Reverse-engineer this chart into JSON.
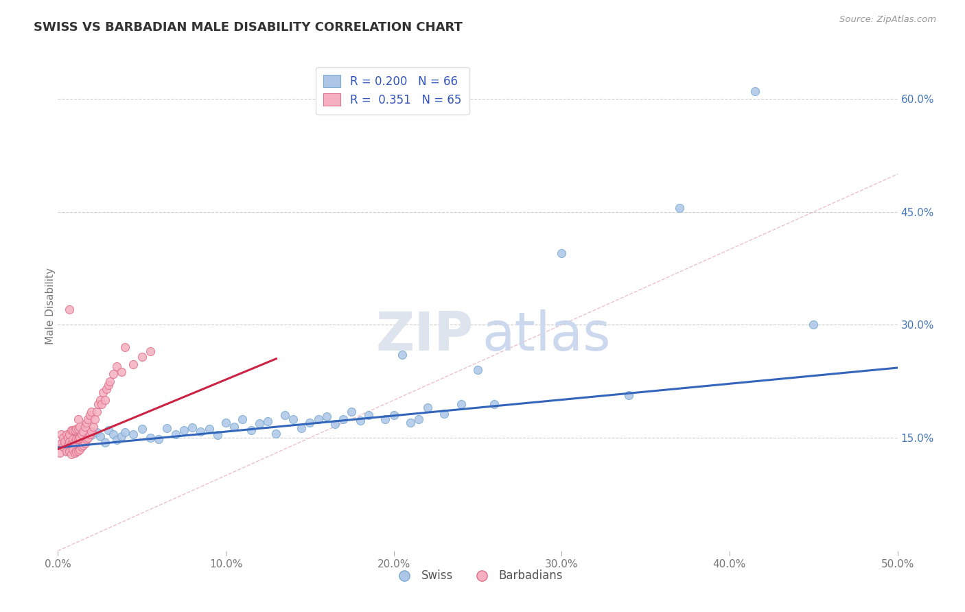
{
  "title": "SWISS VS BARBADIAN MALE DISABILITY CORRELATION CHART",
  "source_text": "Source: ZipAtlas.com",
  "ylabel": "Male Disability",
  "xlim": [
    0.0,
    0.5
  ],
  "ylim": [
    0.0,
    0.65
  ],
  "xticks": [
    0.0,
    0.1,
    0.2,
    0.3,
    0.4,
    0.5
  ],
  "xtick_labels": [
    "0.0%",
    "10.0%",
    "20.0%",
    "30.0%",
    "40.0%",
    "50.0%"
  ],
  "yticks": [
    0.15,
    0.3,
    0.45,
    0.6
  ],
  "ytick_labels": [
    "15.0%",
    "30.0%",
    "45.0%",
    "60.0%"
  ],
  "swiss_color": "#adc6e8",
  "barbadian_color": "#f5afc0",
  "swiss_edge_color": "#7aaad0",
  "barbadian_edge_color": "#e0708a",
  "swiss_trend_color": "#3366bb",
  "barbadian_trend_color": "#cc2244",
  "diag_color": "#e8b0c0",
  "legend_swiss_R": "0.200",
  "legend_swiss_N": "66",
  "legend_barbadian_R": "0.351",
  "legend_barbadian_N": "65",
  "swiss_label": "Swiss",
  "barbadian_label": "Barbadians",
  "title_color": "#333333",
  "axis_color": "#777777",
  "grid_color": "#cccccc",
  "background_color": "#ffffff",
  "swiss_x": [
    0.002,
    0.003,
    0.004,
    0.005,
    0.006,
    0.007,
    0.008,
    0.009,
    0.01,
    0.011,
    0.013,
    0.015,
    0.017,
    0.02,
    0.023,
    0.025,
    0.028,
    0.03,
    0.033,
    0.035,
    0.038,
    0.04,
    0.045,
    0.05,
    0.055,
    0.06,
    0.065,
    0.07,
    0.075,
    0.08,
    0.085,
    0.09,
    0.095,
    0.1,
    0.105,
    0.11,
    0.115,
    0.12,
    0.125,
    0.13,
    0.135,
    0.14,
    0.145,
    0.15,
    0.155,
    0.16,
    0.165,
    0.17,
    0.175,
    0.18,
    0.185,
    0.195,
    0.2,
    0.205,
    0.21,
    0.215,
    0.22,
    0.23,
    0.24,
    0.25,
    0.26,
    0.3,
    0.34,
    0.37,
    0.415,
    0.45
  ],
  "swiss_y": [
    0.142,
    0.138,
    0.145,
    0.132,
    0.15,
    0.143,
    0.136,
    0.148,
    0.13,
    0.155,
    0.145,
    0.15,
    0.148,
    0.154,
    0.157,
    0.152,
    0.144,
    0.16,
    0.155,
    0.147,
    0.152,
    0.157,
    0.155,
    0.162,
    0.15,
    0.148,
    0.163,
    0.155,
    0.16,
    0.164,
    0.158,
    0.162,
    0.154,
    0.17,
    0.165,
    0.175,
    0.16,
    0.169,
    0.172,
    0.156,
    0.18,
    0.175,
    0.163,
    0.17,
    0.175,
    0.178,
    0.168,
    0.175,
    0.185,
    0.173,
    0.18,
    0.175,
    0.18,
    0.26,
    0.17,
    0.175,
    0.19,
    0.182,
    0.195,
    0.24,
    0.195,
    0.395,
    0.207,
    0.455,
    0.61,
    0.3
  ],
  "barbadian_x": [
    0.001,
    0.002,
    0.002,
    0.003,
    0.003,
    0.004,
    0.005,
    0.005,
    0.006,
    0.006,
    0.007,
    0.007,
    0.007,
    0.008,
    0.008,
    0.008,
    0.009,
    0.009,
    0.009,
    0.01,
    0.01,
    0.01,
    0.011,
    0.011,
    0.011,
    0.012,
    0.012,
    0.012,
    0.012,
    0.013,
    0.013,
    0.013,
    0.014,
    0.014,
    0.015,
    0.015,
    0.016,
    0.016,
    0.017,
    0.017,
    0.018,
    0.018,
    0.019,
    0.019,
    0.02,
    0.02,
    0.021,
    0.022,
    0.023,
    0.024,
    0.025,
    0.026,
    0.027,
    0.028,
    0.029,
    0.03,
    0.031,
    0.033,
    0.035,
    0.038,
    0.04,
    0.045,
    0.05,
    0.055,
    0.007
  ],
  "barbadian_y": [
    0.13,
    0.143,
    0.155,
    0.138,
    0.15,
    0.145,
    0.132,
    0.155,
    0.14,
    0.15,
    0.132,
    0.145,
    0.155,
    0.128,
    0.142,
    0.16,
    0.135,
    0.148,
    0.16,
    0.13,
    0.145,
    0.16,
    0.132,
    0.148,
    0.162,
    0.133,
    0.148,
    0.162,
    0.175,
    0.135,
    0.15,
    0.165,
    0.138,
    0.155,
    0.14,
    0.158,
    0.143,
    0.165,
    0.148,
    0.17,
    0.15,
    0.175,
    0.155,
    0.18,
    0.158,
    0.185,
    0.165,
    0.175,
    0.185,
    0.195,
    0.2,
    0.195,
    0.21,
    0.2,
    0.215,
    0.22,
    0.225,
    0.235,
    0.245,
    0.238,
    0.27,
    0.248,
    0.258,
    0.265,
    0.32
  ]
}
